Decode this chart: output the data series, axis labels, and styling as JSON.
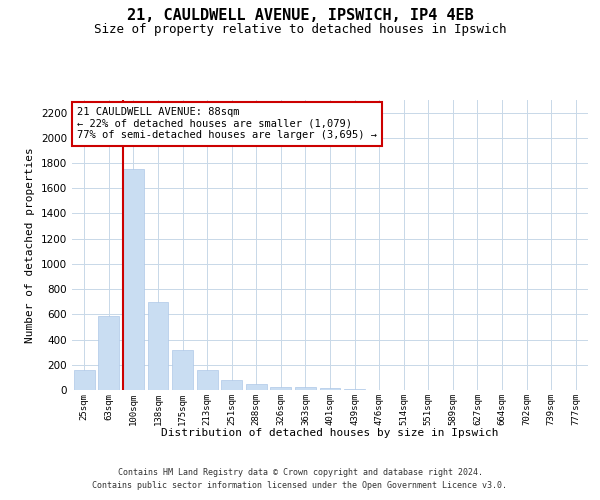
{
  "title1": "21, CAULDWELL AVENUE, IPSWICH, IP4 4EB",
  "title2": "Size of property relative to detached houses in Ipswich",
  "xlabel": "Distribution of detached houses by size in Ipswich",
  "ylabel": "Number of detached properties",
  "categories": [
    "25sqm",
    "63sqm",
    "100sqm",
    "138sqm",
    "175sqm",
    "213sqm",
    "251sqm",
    "288sqm",
    "326sqm",
    "363sqm",
    "401sqm",
    "439sqm",
    "476sqm",
    "514sqm",
    "551sqm",
    "589sqm",
    "627sqm",
    "664sqm",
    "702sqm",
    "739sqm",
    "777sqm"
  ],
  "values": [
    155,
    590,
    1750,
    700,
    315,
    160,
    80,
    45,
    25,
    20,
    15,
    5,
    3,
    0,
    0,
    0,
    0,
    0,
    0,
    0,
    0
  ],
  "bar_color": "#c9ddf2",
  "bar_edge_color": "#afc8e8",
  "vline_color": "#cc0000",
  "annotation_text": "21 CAULDWELL AVENUE: 88sqm\n← 22% of detached houses are smaller (1,079)\n77% of semi-detached houses are larger (3,695) →",
  "annotation_box_color": "#ffffff",
  "annotation_box_edge": "#cc0000",
  "ylim": [
    0,
    2300
  ],
  "yticks": [
    0,
    200,
    400,
    600,
    800,
    1000,
    1200,
    1400,
    1600,
    1800,
    2000,
    2200
  ],
  "footer1": "Contains HM Land Registry data © Crown copyright and database right 2024.",
  "footer2": "Contains public sector information licensed under the Open Government Licence v3.0.",
  "bg_color": "#ffffff",
  "grid_color": "#c8d8e8"
}
